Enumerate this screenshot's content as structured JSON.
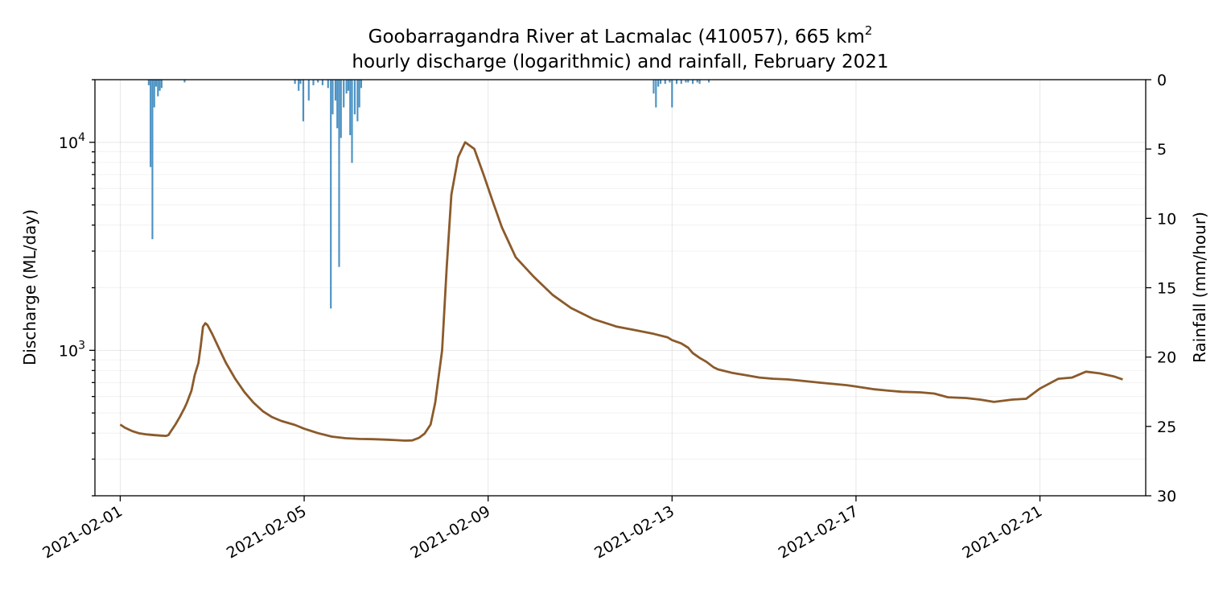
{
  "chart_data": {
    "type": "line",
    "title_line1_main": "Goobarragandra River at Lacmalac (410057), 665 km",
    "title_line1_sup": "2",
    "title_line2": "hourly discharge (logarithmic) and rainfall, February 2021",
    "ylabel": "Discharge (ML/day)",
    "y2label": "Rainfall (mm/hour)",
    "xlim_days": [
      -0.55,
      22.3
    ],
    "ylim": [
      200,
      20000
    ],
    "y2lim": [
      0,
      30
    ],
    "x_ticks": [
      0,
      4,
      8,
      12,
      16,
      20
    ],
    "x_tick_labels": [
      "2021-02-01",
      "2021-02-05",
      "2021-02-09",
      "2021-02-13",
      "2021-02-17",
      "2021-02-21"
    ],
    "y_ticks": [
      1000,
      10000
    ],
    "y_tick_base": "10",
    "y_tick_exps": [
      "3",
      "4"
    ],
    "y2_ticks": [
      0,
      5,
      10,
      15,
      20,
      25,
      30
    ],
    "grid": true,
    "discharge_color": "#8B5A2B",
    "rain_color": "#1f77b4",
    "series": [
      {
        "name": "discharge",
        "x": [
          0,
          0.1,
          0.25,
          0.4,
          0.55,
          0.65,
          0.75,
          0.9,
          1.0,
          1.05,
          1.1,
          1.2,
          1.3,
          1.4,
          1.45,
          1.55,
          1.62,
          1.7,
          1.75,
          1.8,
          1.85,
          1.9,
          2.0,
          2.15,
          2.3,
          2.5,
          2.7,
          2.9,
          3.1,
          3.3,
          3.5,
          3.8,
          4.0,
          4.3,
          4.6,
          4.9,
          5.2,
          5.5,
          5.8,
          6.0,
          6.2,
          6.35,
          6.5,
          6.62,
          6.75,
          6.85,
          7.0,
          7.1,
          7.2,
          7.35,
          7.5,
          7.7,
          7.9,
          8.1,
          8.3,
          8.6,
          9.0,
          9.4,
          9.8,
          10.3,
          10.8,
          11.2,
          11.6,
          11.9,
          12.0,
          12.2,
          12.35,
          12.45,
          12.6,
          12.75,
          12.9,
          13.0,
          13.1,
          13.3,
          13.6,
          13.9,
          14.2,
          14.5,
          14.8,
          15.2,
          15.5,
          15.8,
          16.0,
          16.4,
          16.7,
          17.0,
          17.4,
          17.7,
          18.0,
          18.4,
          18.7,
          19.0,
          19.4,
          19.7,
          20.0,
          20.4,
          20.7,
          21.0,
          21.3,
          21.6,
          21.8
        ],
        "values": [
          440,
          425,
          410,
          400,
          395,
          393,
          391,
          389,
          388,
          392,
          408,
          440,
          480,
          530,
          560,
          640,
          760,
          870,
          1050,
          1300,
          1350,
          1320,
          1200,
          1020,
          870,
          730,
          630,
          560,
          510,
          478,
          458,
          438,
          420,
          400,
          385,
          378,
          375,
          374,
          372,
          370,
          368,
          369,
          380,
          398,
          440,
          560,
          1000,
          2500,
          5600,
          8500,
          10000,
          9300,
          7000,
          5200,
          3900,
          2800,
          2250,
          1850,
          1600,
          1410,
          1300,
          1250,
          1200,
          1155,
          1120,
          1080,
          1030,
          970,
          920,
          880,
          830,
          810,
          800,
          780,
          760,
          740,
          730,
          725,
          715,
          700,
          690,
          680,
          670,
          650,
          640,
          632,
          628,
          620,
          595,
          590,
          580,
          565,
          580,
          585,
          655,
          730,
          740,
          790,
          775,
          750,
          725
        ]
      },
      {
        "name": "rainfall",
        "x": [
          0.62,
          0.66,
          0.7,
          0.74,
          0.78,
          0.82,
          0.86,
          0.9,
          1.4,
          3.8,
          3.88,
          3.92,
          3.98,
          4.1,
          4.2,
          4.3,
          4.4,
          4.52,
          4.58,
          4.62,
          4.68,
          4.72,
          4.76,
          4.8,
          4.86,
          4.92,
          4.96,
          5.0,
          5.04,
          5.1,
          5.16,
          5.2,
          5.24,
          11.6,
          11.65,
          11.7,
          11.75,
          11.85,
          11.95,
          12.0,
          12.1,
          12.2,
          12.3,
          12.35,
          12.45,
          12.55,
          12.6,
          12.8
        ],
        "values": [
          0.4,
          6.3,
          11.5,
          2.0,
          0.5,
          1.2,
          0.8,
          0.6,
          0.2,
          0.3,
          0.8,
          0.3,
          3.0,
          1.5,
          0.4,
          0.2,
          0.4,
          0.6,
          16.5,
          2.5,
          1.5,
          3.5,
          13.5,
          4.2,
          2.0,
          1.0,
          0.8,
          4.0,
          6.0,
          2.5,
          3.0,
          2.0,
          0.6,
          1.0,
          2.0,
          0.5,
          0.3,
          0.3,
          0.2,
          2.0,
          0.3,
          0.3,
          0.2,
          0.2,
          0.3,
          0.2,
          0.3,
          0.2
        ]
      }
    ]
  }
}
